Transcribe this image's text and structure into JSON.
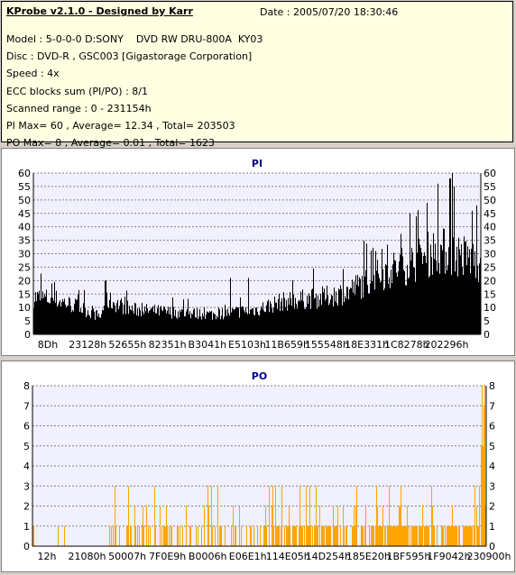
{
  "header": {
    "title": "KProbe v2.1.0 - Designed by Karr",
    "date": "Date : 2005/07/20 18:30:46",
    "lines": [
      "Model : 5-0-0-0 D:SONY    DVD RW DRU-800A  KY03",
      "Disc : DVD-R , GSC003 [Gigastorage Corporation]",
      "Speed : 4x",
      "ECC blocks sum (PI/PO) : 8/1",
      "Scanned range : 0 - 231154h",
      "PI Max= 60 , Average= 12.34 , Total= 203503",
      "PO Max= 8 , Average= 0.01 , Total= 1623"
    ]
  },
  "chart_data": [
    {
      "type": "bar",
      "title": "PI",
      "color": "#000000",
      "ylim": [
        0,
        60
      ],
      "yticks": [
        0,
        5,
        10,
        15,
        20,
        25,
        30,
        35,
        40,
        45,
        50,
        55,
        60
      ],
      "xticks": [
        "8Dh",
        "23128h",
        "52655h",
        "82351h",
        "B3041h",
        "E5103h",
        "11B659h",
        "155548h",
        "18E331h",
        "1C8278h",
        "202296h"
      ],
      "xlim_hex": [
        "0",
        "231154"
      ],
      "baseline_profile": [
        [
          0.0,
          15
        ],
        [
          0.05,
          14
        ],
        [
          0.1,
          11
        ],
        [
          0.15,
          7
        ],
        [
          0.16,
          14
        ],
        [
          0.22,
          10
        ],
        [
          0.3,
          9
        ],
        [
          0.4,
          8
        ],
        [
          0.45,
          9
        ],
        [
          0.5,
          10
        ],
        [
          0.55,
          13
        ],
        [
          0.6,
          14
        ],
        [
          0.65,
          15
        ],
        [
          0.7,
          17
        ],
        [
          0.75,
          22
        ],
        [
          0.8,
          26
        ],
        [
          0.85,
          29
        ],
        [
          0.9,
          34
        ],
        [
          0.95,
          32
        ],
        [
          1.0,
          29
        ]
      ],
      "peaks": [
        [
          0.935,
          60
        ],
        [
          0.93,
          58
        ],
        [
          0.94,
          55
        ],
        [
          0.99,
          48
        ],
        [
          0.98,
          46
        ],
        [
          0.16,
          20
        ],
        [
          0.48,
          21
        ],
        [
          0.44,
          21
        ]
      ]
    },
    {
      "type": "bar",
      "title": "PO",
      "color": "#ffa500",
      "ylim": [
        0,
        8
      ],
      "yticks": [
        0,
        1,
        2,
        3,
        4,
        5,
        6,
        7,
        8
      ],
      "xticks": [
        "12h",
        "21080h",
        "50007h",
        "7F0E9h",
        "B0006h",
        "E06E1h",
        "114E05h",
        "14D254h",
        "185E20h",
        "1BF595h",
        "1F9042h",
        "230900h"
      ],
      "xlim_hex": [
        "0",
        "231154"
      ],
      "max_value": 8
    }
  ]
}
